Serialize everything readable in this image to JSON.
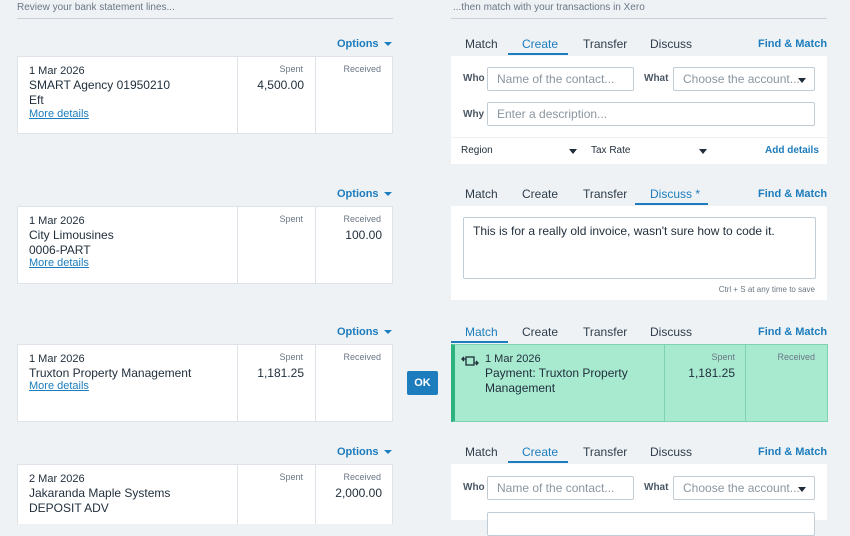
{
  "headers": {
    "left": "Review your bank statement lines...",
    "right": "...then match with your transactions in Xero"
  },
  "options_label": "Options",
  "spent_label": "Spent",
  "received_label": "Received",
  "more_details": "More details",
  "tabs": [
    "Match",
    "Create",
    "Transfer",
    "Discuss",
    "Discuss *"
  ],
  "find_match": "Find & Match",
  "rows": [
    {
      "date": "1 Mar 2026",
      "line1": "SMART Agency 01950210",
      "line2": "Eft",
      "spent": "4,500.00",
      "received": ""
    },
    {
      "date": "1 Mar 2026",
      "line1": "City Limousines",
      "line2": "0006-PART",
      "spent": "",
      "received": "100.00"
    },
    {
      "date": "1 Mar 2026",
      "line1": "Truxton Property Management",
      "spent": "1,181.25",
      "received": ""
    },
    {
      "date": "2 Mar 2026",
      "line1": "Jakaranda Maple Systems",
      "line2": "DEPOSIT ADV",
      "spent": "",
      "received": "2,000.00"
    }
  ],
  "create_form": {
    "who_label": "Who",
    "who_placeholder": "Name of the contact...",
    "what_label": "What",
    "what_placeholder": "Choose the account...",
    "why_label": "Why",
    "why_placeholder": "Enter a description...",
    "region": "Region",
    "tax_rate": "Tax Rate",
    "add_details": "Add details"
  },
  "discuss": {
    "text": "This is for a really old invoice, wasn't sure how to code it.",
    "hint": "Ctrl + S at any time to save"
  },
  "match_result": {
    "date": "1 Mar 2026",
    "title": "Payment: Truxton Property Management",
    "spent": "1,181.25"
  },
  "ok_label": "OK"
}
